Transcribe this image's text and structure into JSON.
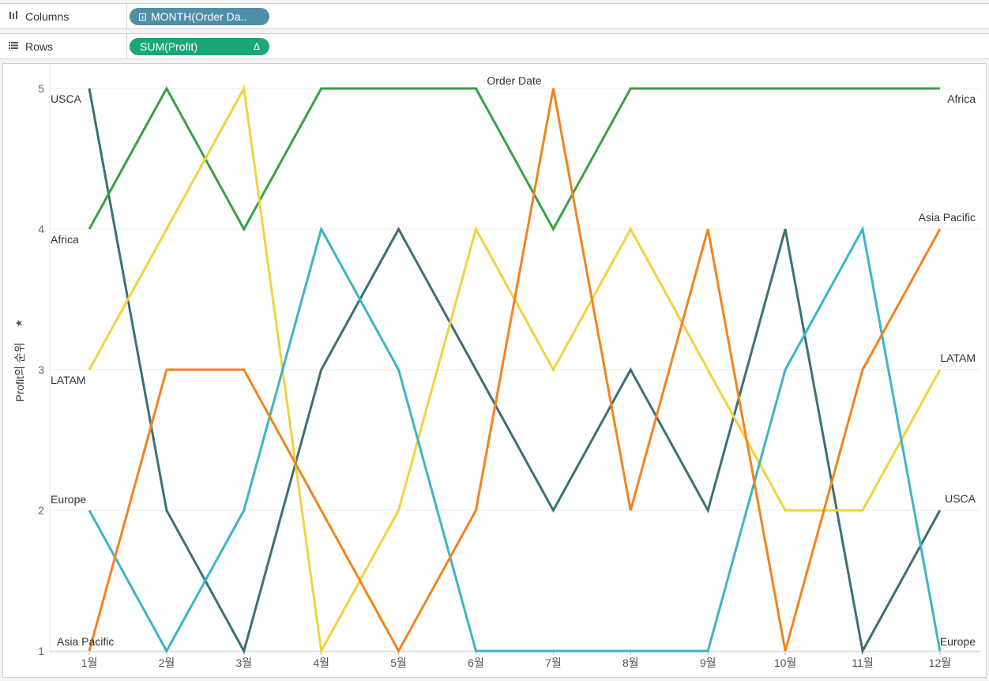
{
  "shelves": {
    "columns": {
      "label": "Columns",
      "icon": "columns-icon",
      "pill": "MONTH(Order Da.."
    },
    "rows": {
      "label": "Rows",
      "icon": "rows-icon",
      "pill": "SUM(Profit)",
      "pill_marker": "Δ"
    }
  },
  "colors": {
    "columns_pill": "#4e8fa7",
    "rows_pill": "#1aa778"
  },
  "chart_data": {
    "type": "line",
    "title": "Order Date",
    "ylabel": "Profit의 순위",
    "ylabel_icon": "pin-icon",
    "x": [
      "1월",
      "2월",
      "3월",
      "4월",
      "5월",
      "6월",
      "7월",
      "8월",
      "9월",
      "10월",
      "11월",
      "12월"
    ],
    "ylim": [
      1,
      5
    ],
    "yticks": [
      1,
      2,
      3,
      4,
      5
    ],
    "y_reversed": false,
    "grid": true,
    "series": [
      {
        "name": "USCA",
        "color": "#3c7073",
        "values": [
          5,
          2,
          1,
          3,
          4,
          3,
          2,
          3,
          2,
          4,
          1,
          2
        ]
      },
      {
        "name": "Africa",
        "color": "#38a144",
        "values": [
          4,
          5,
          4,
          5,
          5,
          5,
          4,
          5,
          5,
          5,
          5,
          5
        ]
      },
      {
        "name": "LATAM",
        "color": "#f5d13f",
        "values": [
          3,
          4,
          5,
          1,
          2,
          4,
          3,
          4,
          3,
          2,
          2,
          3
        ]
      },
      {
        "name": "Europe",
        "color": "#3db4c7",
        "values": [
          2,
          1,
          2,
          4,
          3,
          1,
          1,
          1,
          1,
          3,
          4,
          1
        ]
      },
      {
        "name": "Asia Pacific",
        "color": "#f4821f",
        "values": [
          1,
          3,
          3,
          2,
          1,
          2,
          5,
          2,
          4,
          1,
          3,
          4
        ]
      }
    ]
  }
}
